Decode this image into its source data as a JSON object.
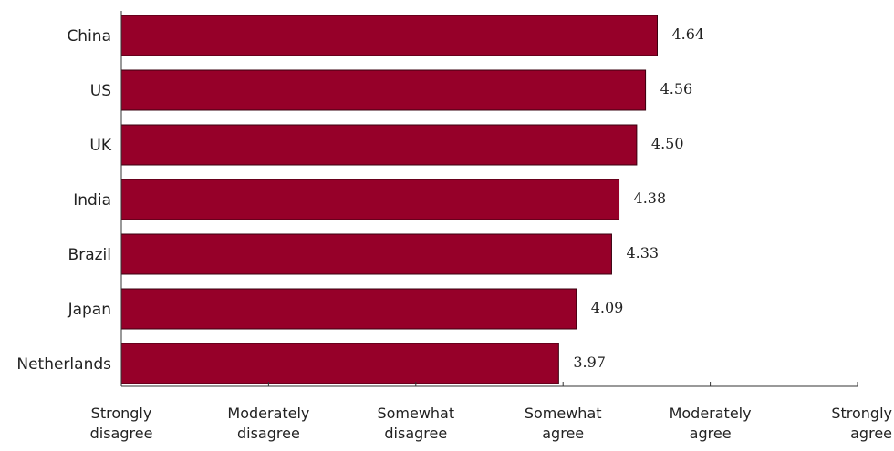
{
  "chart_data": {
    "type": "bar",
    "orientation": "horizontal",
    "categories": [
      "China",
      "US",
      "UK",
      "India",
      "Brazil",
      "Japan",
      "Netherlands"
    ],
    "values": [
      4.64,
      4.56,
      4.5,
      4.38,
      4.33,
      4.09,
      3.97
    ],
    "value_labels": [
      "4.64",
      "4.56",
      "4.50",
      "4.38",
      "4.33",
      "4.09",
      "3.97"
    ],
    "xlim": [
      1,
      6
    ],
    "x_ticks": [
      {
        "value": 1,
        "line1": "Strongly",
        "line2": "disagree"
      },
      {
        "value": 2,
        "line1": "Moderately",
        "line2": "disagree"
      },
      {
        "value": 3,
        "line1": "Somewhat",
        "line2": "disagree"
      },
      {
        "value": 4,
        "line1": "Somewhat",
        "line2": "agree"
      },
      {
        "value": 5,
        "line1": "Moderately",
        "line2": "agree"
      },
      {
        "value": 6,
        "line1": "Strongly",
        "line2": "agree"
      }
    ],
    "title": "",
    "xlabel": "",
    "ylabel": "",
    "grid": false,
    "legend": "none",
    "bar_color": "#960029"
  }
}
